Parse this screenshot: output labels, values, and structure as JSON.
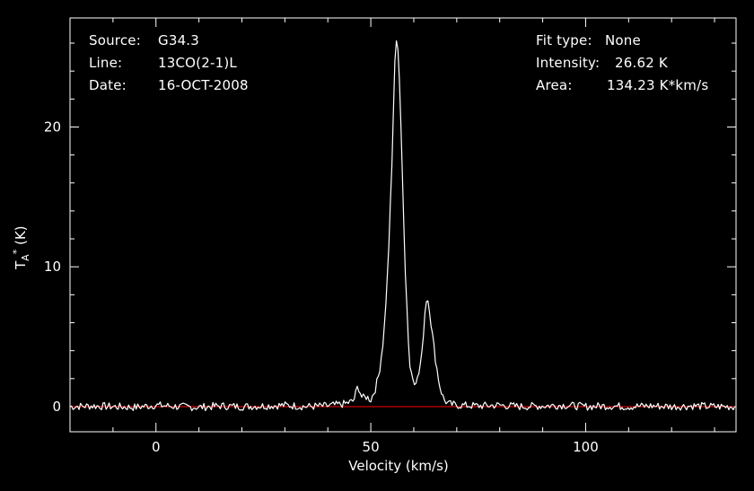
{
  "header": {
    "source_label": "Source:",
    "source_value": "G34.3",
    "line_label": "Line:",
    "line_value": "13CO(2-1)L",
    "date_label": "Date:",
    "date_value": "16-OCT-2008",
    "fit_label": "Fit type:",
    "fit_value": "None",
    "intensity_label": "Intensity:",
    "intensity_value": "26.62 K",
    "area_label": "Area:",
    "area_value": "134.23 K*km/s"
  },
  "chart_data": {
    "type": "line",
    "xlabel": "Velocity (km/s)",
    "ylabel_main": "T",
    "ylabel_super": "*",
    "ylabel_sub": "A",
    "ylabel_unit": "(K)",
    "xlim": [
      -20,
      135
    ],
    "ylim": [
      -1.8,
      27.8
    ],
    "xticks": [
      0,
      50,
      100
    ],
    "yticks": [
      0,
      10,
      20
    ],
    "grid": false,
    "baseline": 0,
    "colors": {
      "background": "#000000",
      "axes": "#ffffff",
      "spectrum": "#ffffff",
      "baseline": "#cc0000"
    },
    "series": [
      {
        "x": [
          -20,
          -15,
          -10,
          -5,
          0,
          5,
          10,
          15,
          20,
          25,
          30,
          35,
          40,
          44,
          46,
          47,
          48,
          49,
          50,
          51,
          52,
          53,
          54,
          55,
          55.5,
          56,
          56.5,
          57,
          58,
          59,
          60,
          61,
          62,
          62.5,
          63,
          63.5,
          64,
          65,
          66,
          67,
          68,
          70,
          75,
          80,
          85,
          90,
          95,
          100,
          105,
          110,
          115,
          120,
          125,
          130,
          135
        ],
        "y": [
          0,
          0.05,
          0,
          -0.05,
          0.1,
          0,
          -0.05,
          0.05,
          0,
          0.05,
          0.1,
          0,
          0.05,
          0.2,
          0.4,
          1.5,
          0.6,
          0.7,
          0.5,
          1.2,
          2.5,
          5,
          10,
          18,
          24,
          26.6,
          25,
          20,
          10,
          3,
          1.8,
          2,
          4,
          6.5,
          7.8,
          7.5,
          6,
          3.5,
          1.5,
          0.5,
          0.2,
          0.1,
          0.05,
          0.1,
          0,
          0.05,
          0.1,
          0,
          0.05,
          0,
          0.05,
          0,
          0.05,
          0,
          0
        ]
      }
    ]
  }
}
